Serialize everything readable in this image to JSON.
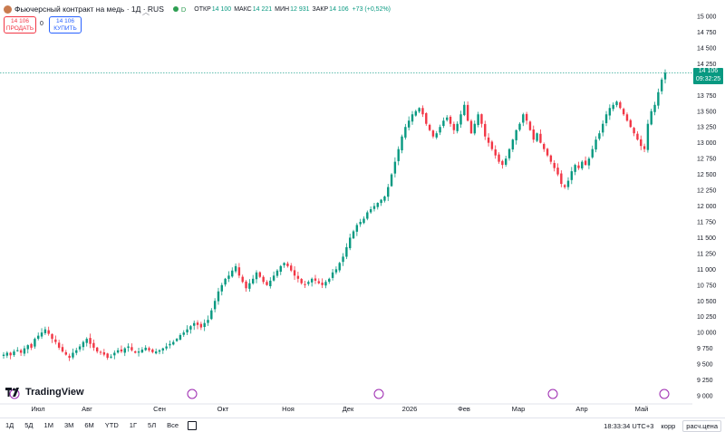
{
  "header": {
    "title": "Фьючерсный контракт на медь · 1Д · RUS",
    "status_letter": "D",
    "open_label": "ОТКР",
    "open_value": "14 100",
    "high_label": "МАКС",
    "high_value": "14 221",
    "low_label": "МИН",
    "low_value": "12 931",
    "close_label": "ЗАКР",
    "close_value": "14 106",
    "change_value": "+73 (+0,52%)"
  },
  "trade": {
    "sell_price": "14 106",
    "sell_label": "ПРОДАТЬ",
    "spread": "0",
    "buy_price": "14 106",
    "buy_label": "КУПИТЬ"
  },
  "last_price": {
    "value": "14 106",
    "countdown": "09:32:25"
  },
  "branding": {
    "logo_text": "TradingView"
  },
  "toolbar": {
    "ranges": [
      "1Д",
      "5Д",
      "1М",
      "3М",
      "6М",
      "YTD",
      "1Г",
      "5Л",
      "Все"
    ],
    "clock": "18:33:34 UTC+3",
    "adjust_label": "корр",
    "pricing_label": "расч.цена"
  },
  "colors": {
    "up": "#089981",
    "down": "#f23645",
    "last_price_line": "#089981"
  },
  "chart_data": {
    "type": "candlestick",
    "title": "Фьючерсный контракт на медь · 1Д · RUS",
    "y_ticks": [
      9000,
      9250,
      9500,
      9750,
      10000,
      10250,
      10500,
      10750,
      11000,
      11250,
      11500,
      11750,
      12000,
      12250,
      12500,
      12750,
      13000,
      13250,
      13500,
      13750,
      14000,
      14250,
      14500,
      14750,
      15000
    ],
    "y_tick_labels": [
      "9 000",
      "9 250",
      "9 500",
      "9 750",
      "10 000",
      "10 250",
      "10 500",
      "10 750",
      "11 000",
      "11 250",
      "11 500",
      "11 750",
      "12 000",
      "12 250",
      "12 500",
      "12 750",
      "13 000",
      "13 250",
      "13 500",
      "13 750",
      "14 000",
      "14 250",
      "14 500",
      "14 750",
      "15 000"
    ],
    "ylim": [
      9000,
      15000
    ],
    "x_tick_labels": [
      "Июл",
      "Авг",
      "Сен",
      "Окт",
      "Ноя",
      "Дек",
      "2026",
      "Фев",
      "Мар",
      "Апр",
      "Май"
    ],
    "last_value": 14106,
    "grid": false,
    "close": [
      9650,
      9680,
      9640,
      9700,
      9720,
      9680,
      9750,
      9800,
      9760,
      9900,
      9950,
      10000,
      10050,
      9980,
      9900,
      9850,
      9760,
      9700,
      9650,
      9600,
      9680,
      9720,
      9780,
      9850,
      9900,
      9820,
      9760,
      9700,
      9680,
      9650,
      9600,
      9620,
      9680,
      9720,
      9700,
      9750,
      9780,
      9720,
      9680,
      9700,
      9730,
      9760,
      9720,
      9690,
      9700,
      9720,
      9750,
      9780,
      9820,
      9850,
      9900,
      9960,
      10000,
      10050,
      10100,
      10150,
      10120,
      10080,
      10150,
      10200,
      10350,
      10500,
      10650,
      10750,
      10850,
      10900,
      10980,
      11050,
      10900,
      10800,
      10700,
      10780,
      10850,
      10950,
      10880,
      10800,
      10750,
      10820,
      10900,
      10980,
      11050,
      11100,
      11050,
      10980,
      10900,
      10850,
      10780,
      10750,
      10800,
      10850,
      10820,
      10780,
      10750,
      10800,
      10850,
      10950,
      11000,
      11100,
      11200,
      11350,
      11500,
      11600,
      11700,
      11750,
      11800,
      11900,
      11950,
      12000,
      12050,
      12100,
      12150,
      12300,
      12500,
      12700,
      12900,
      13100,
      13250,
      13350,
      13450,
      13500,
      13550,
      13450,
      13300,
      13200,
      13100,
      13150,
      13250,
      13350,
      13400,
      13300,
      13200,
      13300,
      13450,
      13600,
      13350,
      13150,
      13300,
      13450,
      13300,
      13100,
      13000,
      12900,
      12800,
      12700,
      12650,
      12750,
      12900,
      13050,
      13200,
      13300,
      13450,
      13350,
      13200,
      13050,
      13150,
      13000,
      12900,
      12800,
      12700,
      12600,
      12500,
      12350,
      12300,
      12400,
      12550,
      12650,
      12600,
      12700,
      12650,
      12750,
      12900,
      13050,
      13150,
      13300,
      13450,
      13550,
      13600,
      13650,
      13550,
      13450,
      13350,
      13250,
      13150,
      13050,
      12950,
      12900,
      13300,
      13500,
      13600,
      13800,
      14000,
      14106
    ]
  }
}
